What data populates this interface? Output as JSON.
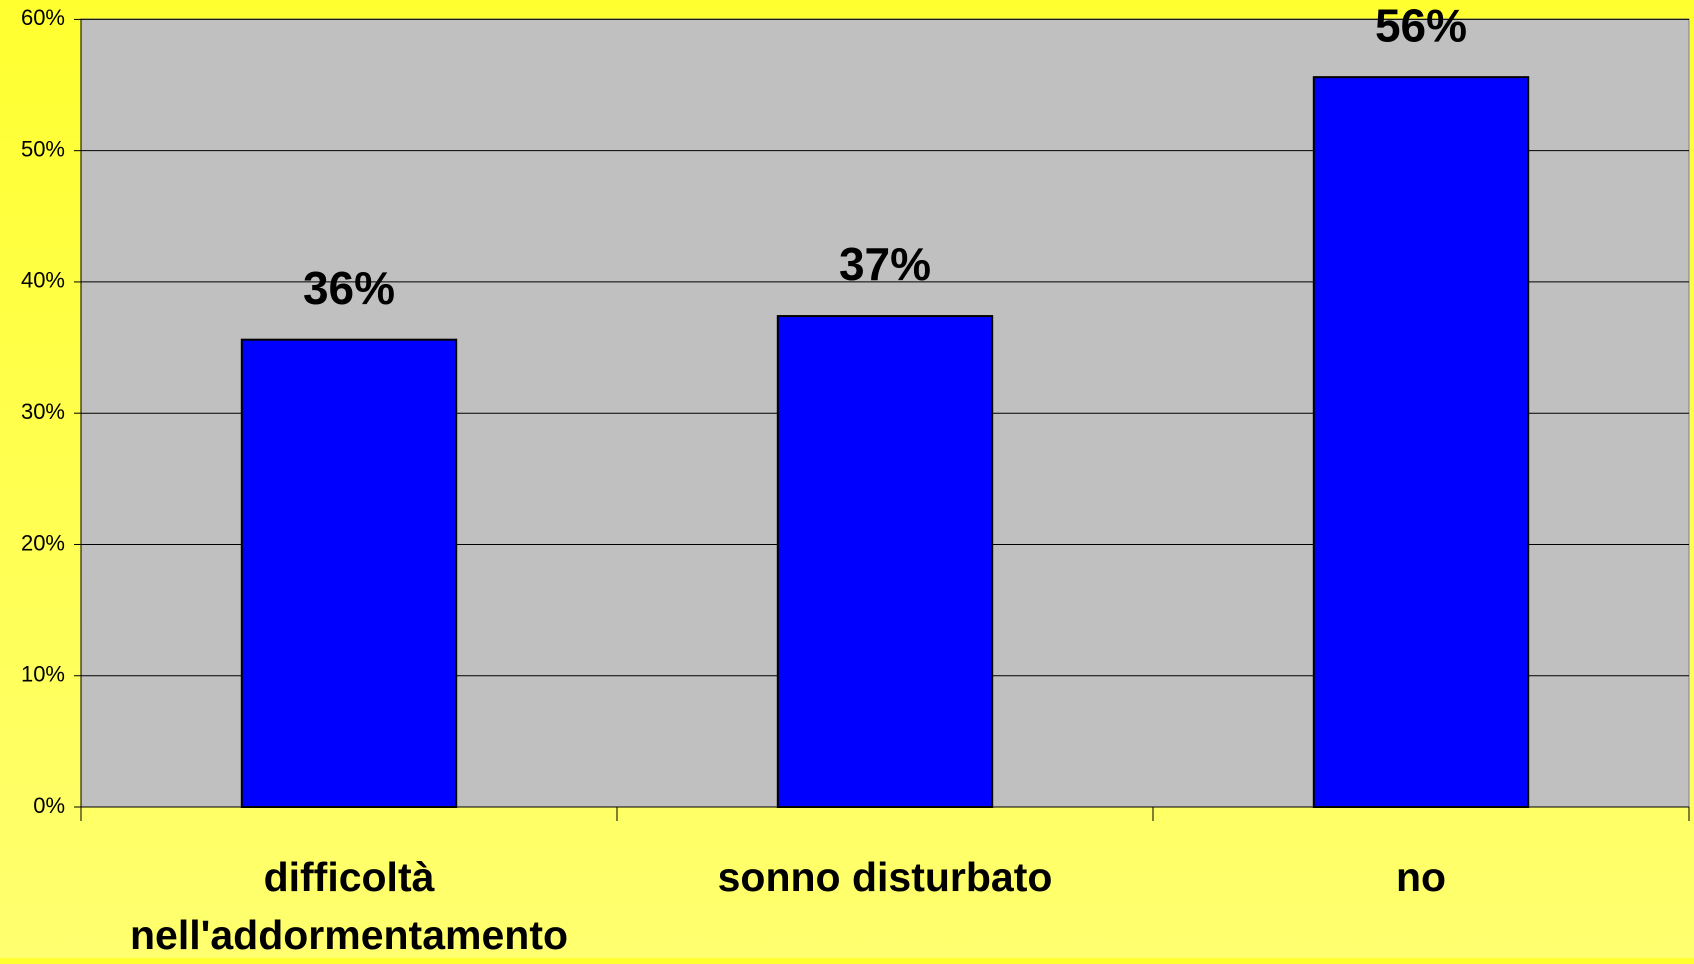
{
  "chart_data": {
    "type": "bar",
    "categories": [
      "difficoltà nell'addormentamento",
      "sonno disturbato",
      "no"
    ],
    "values": [
      35.6,
      37.4,
      55.6
    ],
    "value_labels": [
      "36%",
      "37%",
      "56%"
    ],
    "color": "#0000ff",
    "ylim": [
      0,
      60
    ],
    "yticks": [
      {
        "value": 0,
        "label": "0%"
      },
      {
        "value": 10,
        "label": "10%"
      },
      {
        "value": 20,
        "label": "20%"
      },
      {
        "value": 30,
        "label": "30%"
      },
      {
        "value": 40,
        "label": "40%"
      },
      {
        "value": 50,
        "label": "50%"
      },
      {
        "value": 60,
        "label": "60%"
      }
    ],
    "grid": true
  }
}
